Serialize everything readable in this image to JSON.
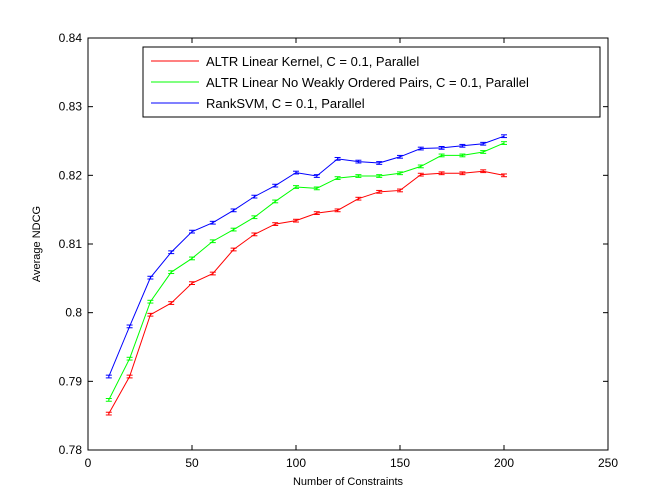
{
  "chart_data": {
    "type": "line",
    "title": "",
    "xlabel": "Number of Constraints",
    "ylabel": "Average NDCG",
    "xlim": [
      0,
      250
    ],
    "ylim": [
      0.78,
      0.84
    ],
    "xticks": [
      0,
      50,
      100,
      150,
      200,
      250
    ],
    "xtick_labels": [
      "0",
      "50",
      "100",
      "150",
      "200",
      "250"
    ],
    "yticks": [
      0.78,
      0.79,
      0.8,
      0.81,
      0.82,
      0.83,
      0.84
    ],
    "ytick_labels": [
      "0.78",
      "0.79",
      "0.8",
      "0.81",
      "0.82",
      "0.83",
      "0.84"
    ],
    "grid": false,
    "legend_position": "top-right",
    "error_bars": true,
    "error_half_width": 0.0002,
    "x": [
      10,
      20,
      30,
      40,
      50,
      60,
      70,
      80,
      90,
      100,
      110,
      120,
      130,
      140,
      150,
      160,
      170,
      180,
      190,
      200
    ],
    "series": [
      {
        "name": "ALTR Linear Kernel, C = 0.1, Parallel",
        "color": "#ff0000",
        "values": [
          0.7853,
          0.7907,
          0.7997,
          0.8014,
          0.8043,
          0.8057,
          0.8092,
          0.8114,
          0.8129,
          0.8134,
          0.8145,
          0.8149,
          0.8166,
          0.8176,
          0.8178,
          0.8201,
          0.8203,
          0.8203,
          0.8206,
          0.82
        ]
      },
      {
        "name": "ALTR Linear No Weakly Ordered Pairs, C = 0.1, Parallel",
        "color": "#00ff00",
        "values": [
          0.7873,
          0.7933,
          0.8016,
          0.8059,
          0.8079,
          0.8104,
          0.8121,
          0.8139,
          0.8162,
          0.8183,
          0.8181,
          0.8196,
          0.8199,
          0.8199,
          0.8203,
          0.8213,
          0.8229,
          0.8229,
          0.8234,
          0.8247
        ]
      },
      {
        "name": "RankSVM, C = 0.1, Parallel",
        "color": "#0000ff",
        "values": [
          0.7907,
          0.798,
          0.8051,
          0.8088,
          0.8118,
          0.8131,
          0.8149,
          0.8169,
          0.8185,
          0.8204,
          0.8199,
          0.8224,
          0.822,
          0.8218,
          0.8227,
          0.8239,
          0.824,
          0.8243,
          0.8246,
          0.8257
        ]
      }
    ]
  }
}
